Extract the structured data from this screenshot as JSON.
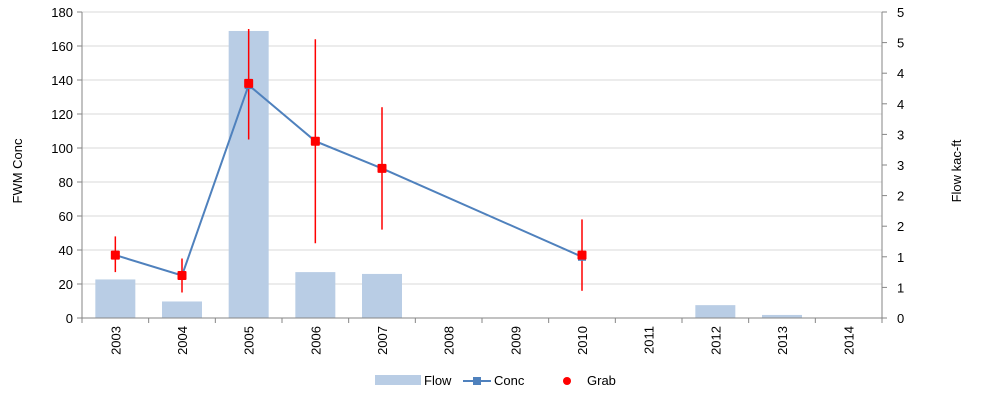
{
  "chart_data": {
    "type": "bar+line",
    "title": "",
    "categories": [
      "2003",
      "2004",
      "2005",
      "2006",
      "2007",
      "2008",
      "2009",
      "2010",
      "2011",
      "2012",
      "2013",
      "2014"
    ],
    "ylabel_left": "FWM Conc",
    "ylabel_right": "Flow kac-ft",
    "ylim_left": [
      0,
      180
    ],
    "yticks_left": [
      0,
      20,
      40,
      60,
      80,
      100,
      120,
      140,
      160,
      180
    ],
    "ylim_right": [
      0,
      5
    ],
    "yticks_right_labels": [
      "0",
      "1",
      "1",
      "2",
      "2",
      "3",
      "3",
      "4",
      "4",
      "5",
      "5"
    ],
    "grid": true,
    "legend_position": "bottom",
    "series": [
      {
        "name": "Flow",
        "type": "bar",
        "axis": "right",
        "color": "#b9cde5",
        "values": [
          0.63,
          0.27,
          4.69,
          0.75,
          0.72,
          0,
          0,
          0,
          0,
          0.21,
          0.05,
          0
        ]
      },
      {
        "name": "Conc",
        "type": "line",
        "axis": "left",
        "color": "#4f81bd",
        "points": [
          {
            "x": "2003",
            "y": 37
          },
          {
            "x": "2004",
            "y": 25
          },
          {
            "x": "2005",
            "y": 137
          },
          {
            "x": "2006",
            "y": 104
          },
          {
            "x": "2007",
            "y": 88
          },
          {
            "x": "2010",
            "y": 36
          }
        ]
      },
      {
        "name": "Grab",
        "type": "scatter",
        "axis": "left",
        "color": "#ff0000",
        "points": [
          {
            "x": "2003",
            "y": 37,
            "low": 27,
            "high": 48
          },
          {
            "x": "2004",
            "y": 25,
            "low": 15,
            "high": 35
          },
          {
            "x": "2005",
            "y": 138,
            "low": 105,
            "high": 170
          },
          {
            "x": "2006",
            "y": 104,
            "low": 44,
            "high": 164
          },
          {
            "x": "2007",
            "y": 88,
            "low": 52,
            "high": 124
          },
          {
            "x": "2010",
            "y": 37,
            "low": 16,
            "high": 58
          }
        ]
      }
    ]
  }
}
